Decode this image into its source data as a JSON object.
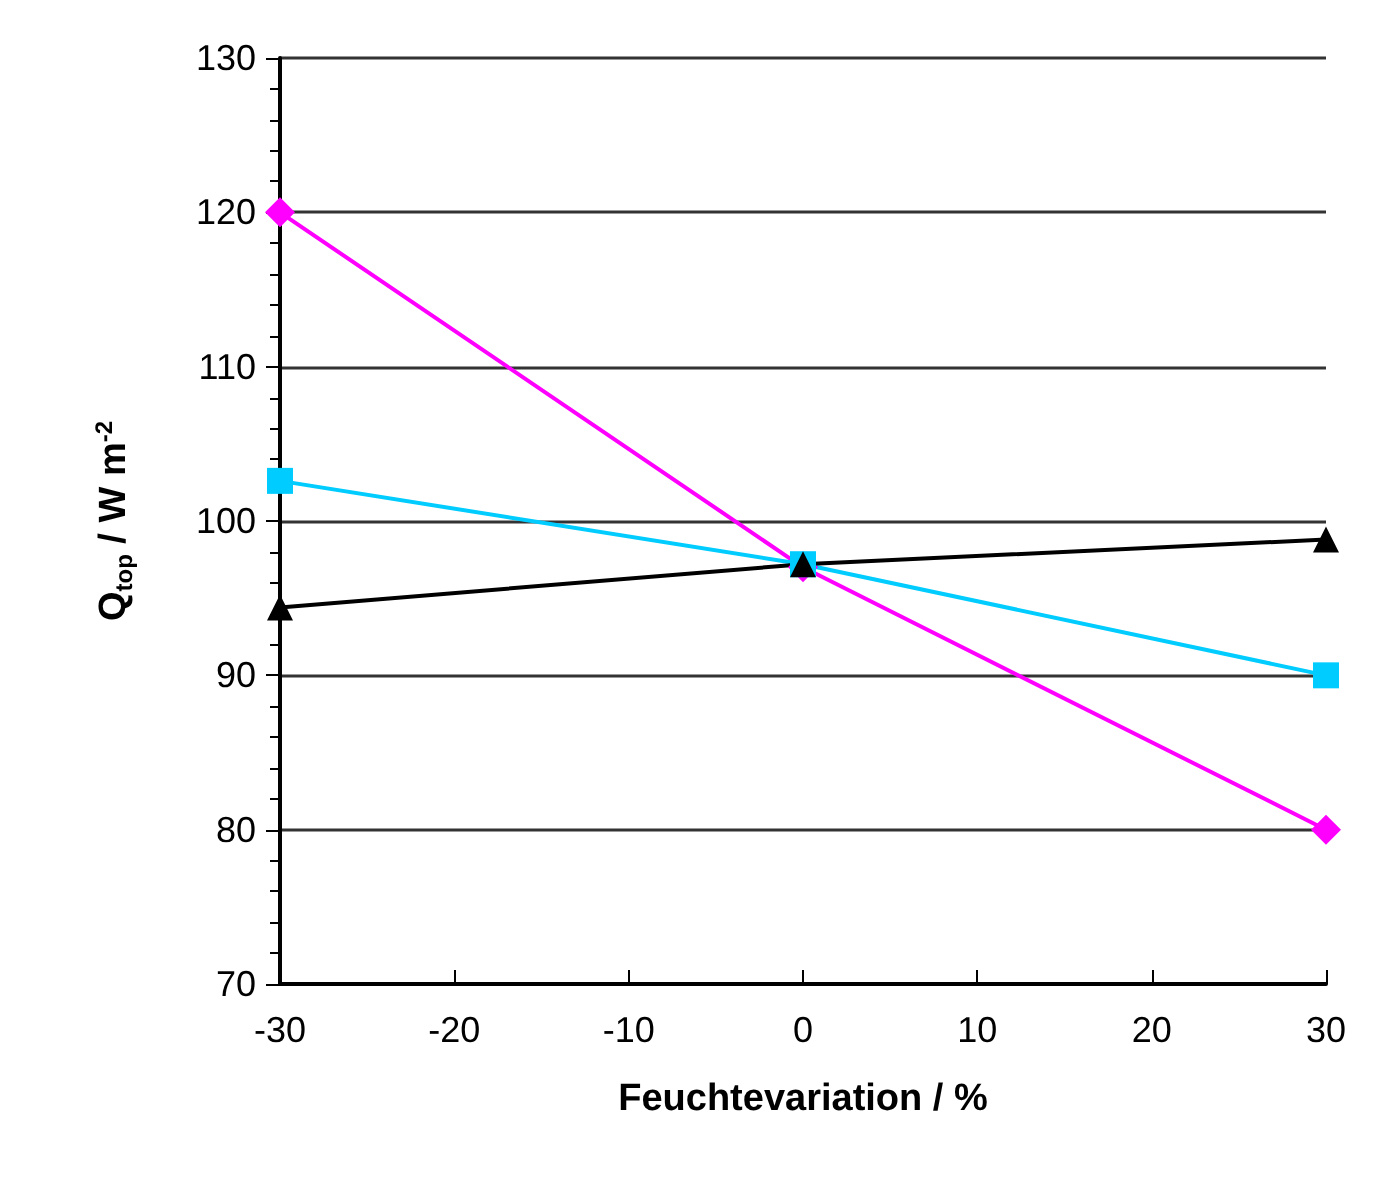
{
  "chart_data": {
    "type": "line",
    "xlabel": "Feuchtevariation / %",
    "ylabel": "Q$_{top}$ / W m$^{-2}$",
    "x": [
      -30,
      0,
      30
    ],
    "series": [
      {
        "color": "#ff00ff",
        "marker": "diamond",
        "values": [
          120,
          97,
          80
        ]
      },
      {
        "color": "#00ccff",
        "marker": "square",
        "values": [
          102.6,
          97.2,
          90
        ]
      },
      {
        "color": "#000000",
        "marker": "triangle",
        "values": [
          94.4,
          97.2,
          98.8
        ]
      }
    ],
    "xlim": [
      -30,
      30
    ],
    "xticks": [
      -30,
      -20,
      -10,
      0,
      10,
      20,
      30
    ],
    "ylim": [
      70,
      130
    ],
    "yticks": [
      70,
      80,
      90,
      100,
      110,
      120,
      130
    ],
    "grid": "y"
  }
}
